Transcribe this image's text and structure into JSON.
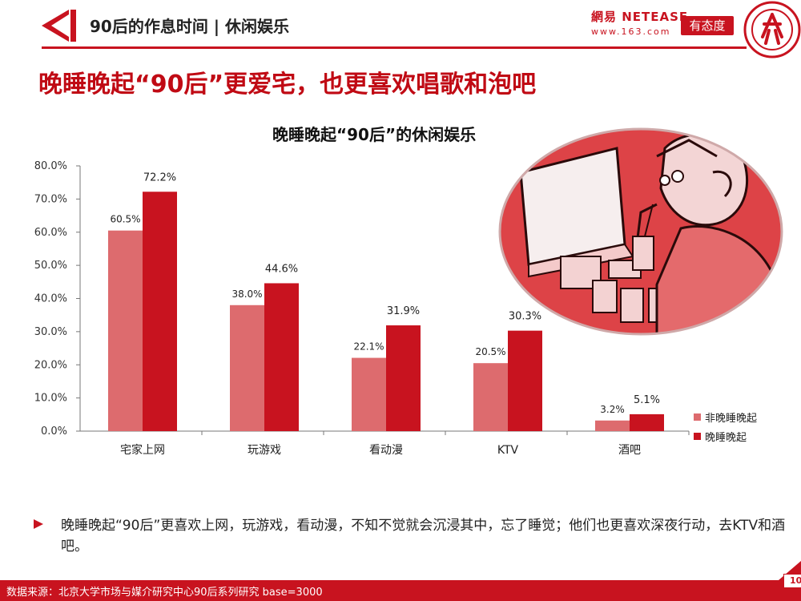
{
  "header": {
    "title": "90后的作息时间 | 休闲娱乐"
  },
  "logos": {
    "netease_line1": "網易 NETEASE",
    "netease_line2": "www.163.com",
    "youtaidu": "有态度"
  },
  "main_title": "晚睡晚起“90后”更爱宅，也更喜欢唱歌和泡吧",
  "colors": {
    "accent": "#c8131f",
    "series_1": "#dd6b6e",
    "series_2": "#c8131f"
  },
  "chart_data": {
    "type": "bar",
    "title": "晚睡晚起“90后”的休闲娱乐",
    "categories": [
      "宅家上网",
      "玩游戏",
      "看动漫",
      "KTV",
      "酒吧"
    ],
    "series": [
      {
        "name": "非晚睡晚起",
        "values": [
          60.5,
          38.0,
          22.1,
          20.5,
          3.2
        ],
        "labels": [
          "60.5%",
          "38.0%",
          "22.1%",
          "20.5%",
          "3.2%"
        ]
      },
      {
        "name": "晚睡晚起",
        "values": [
          72.2,
          44.6,
          31.9,
          30.3,
          5.1
        ],
        "labels": [
          "72.2%",
          "44.6%",
          "31.9%",
          "30.3%",
          "5.1%"
        ]
      }
    ],
    "ylim": [
      0,
      80
    ],
    "yticks": [
      "0.0%",
      "10.0%",
      "20.0%",
      "30.0%",
      "40.0%",
      "50.0%",
      "60.0%",
      "70.0%",
      "80.0%"
    ],
    "legend_position": "bottom-right",
    "grid": false
  },
  "description": "晚睡晚起“90后”更喜欢上网，玩游戏，看动漫，不知不觉就会沉浸其中，忘了睡觉；他们也更喜欢深夜行动，去KTV和酒吧。",
  "footer": {
    "source": "数据来源：北京大学市场与媒介研究中心90后系列研究 base=3000",
    "page_number": "10"
  }
}
